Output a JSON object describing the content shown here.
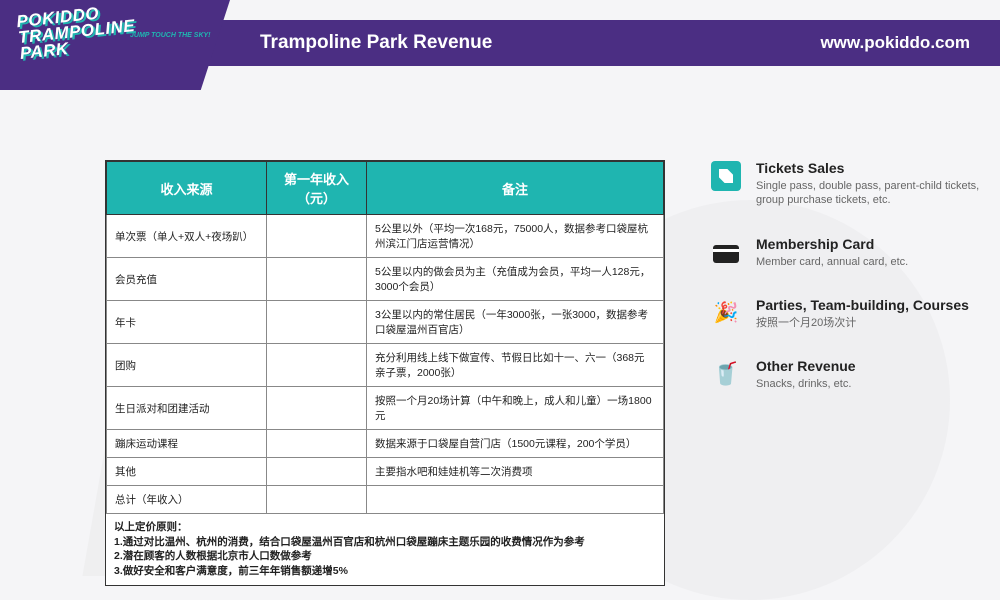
{
  "logo": {
    "line1": "POKIDDO",
    "line2": "TRAMPOLINE",
    "line3": "PARK",
    "tag": "JUMP TOUCH THE SKY!"
  },
  "header": {
    "title": "Trampoline Park Revenue",
    "url": "www.pokiddo.com"
  },
  "table": {
    "headers": [
      "收入来源",
      "第一年收入（元）",
      "备注"
    ],
    "rows": [
      {
        "c0": "单次票（单人+双人+夜场趴）",
        "c1": "",
        "c2": "5公里以外（平均一次168元，75000人，数据参考口袋屋杭州滨江门店运营情况）"
      },
      {
        "c0": "会员充值",
        "c1": "",
        "c2": "5公里以内的做会员为主（充值成为会员，平均一人128元，3000个会员）"
      },
      {
        "c0": "年卡",
        "c1": "",
        "c2": "3公里以内的常住居民（一年3000张，一张3000，数据参考口袋屋温州百官店）"
      },
      {
        "c0": "团购",
        "c1": "",
        "c2": "充分利用线上线下做宣传、节假日比如十一、六一（368元亲子票，2000张）"
      },
      {
        "c0": "生日派对和团建活动",
        "c1": "",
        "c2": "按照一个月20场计算（中午和晚上，成人和儿童）一场1800元"
      },
      {
        "c0": "蹦床运动课程",
        "c1": "",
        "c2": "数据来源于口袋屋自营门店（1500元课程，200个学员）"
      },
      {
        "c0": "其他",
        "c1": "",
        "c2": "主要指水吧和娃娃机等二次消费项"
      },
      {
        "c0": "总计（年收入）",
        "c1": "",
        "c2": ""
      }
    ],
    "notes": "以上定价原则：\n1.通过对比温州、杭州的消费，结合口袋屋温州百官店和杭州口袋屋蹦床主题乐园的收费情况作为参考\n2.潜在顾客的人数根据北京市人口数做参考\n3.做好安全和客户满意度，前三年年销售额递增5%"
  },
  "sidebar": [
    {
      "title": "Tickets Sales",
      "desc": "Single pass, double pass, parent-child tickets, group purchase tickets, etc."
    },
    {
      "title": "Membership Card",
      "desc": "Member card, annual card, etc."
    },
    {
      "title": "Parties, Team-building, Courses",
      "desc": "按照一个月20场次计"
    },
    {
      "title": "Other Revenue",
      "desc": "Snacks, drinks, etc."
    }
  ]
}
